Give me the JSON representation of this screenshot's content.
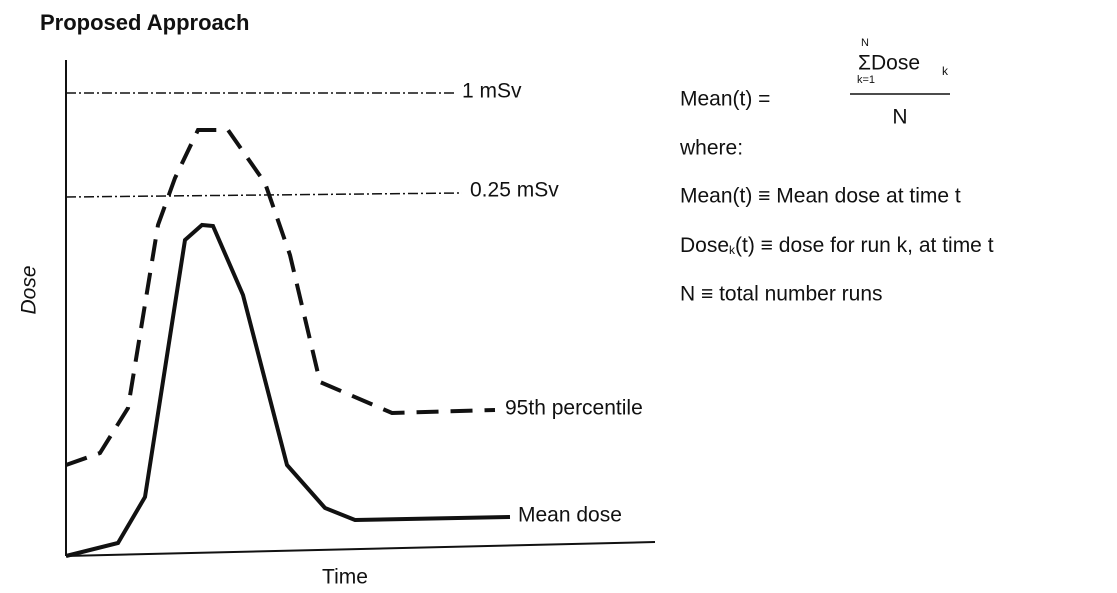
{
  "title": "Proposed Approach",
  "axes": {
    "y_label": "Dose",
    "x_label": "Time"
  },
  "lines": {
    "limit_high": "1 mSv",
    "limit_low": "0.25 mSv",
    "percentile": "95th percentile",
    "mean": "Mean dose"
  },
  "formula": {
    "lhs": "Mean(t) =",
    "sum_top": "N",
    "sum_term": "ΣDose",
    "sum_sub": "k",
    "sum_bottom": "k=1",
    "denominator": "N"
  },
  "definitions": {
    "where": "where:",
    "items": [
      {
        "term": "Mean(t) ≡ Mean dose at time t"
      },
      {
        "term": "Dose",
        "sub": "k",
        "rest": "(t) ≡ dose for run k, at time t"
      },
      {
        "term": "N ≡ total number runs"
      }
    ]
  }
}
